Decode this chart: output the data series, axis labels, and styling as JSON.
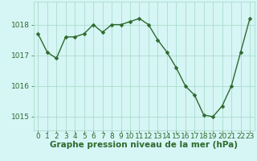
{
  "x": [
    0,
    1,
    2,
    3,
    4,
    5,
    6,
    7,
    8,
    9,
    10,
    11,
    12,
    13,
    14,
    15,
    16,
    17,
    18,
    19,
    20,
    21,
    22,
    23
  ],
  "y": [
    1017.7,
    1017.1,
    1016.9,
    1017.6,
    1017.6,
    1017.7,
    1018.0,
    1017.75,
    1018.0,
    1018.0,
    1018.1,
    1018.2,
    1018.0,
    1017.5,
    1017.1,
    1016.6,
    1016.0,
    1015.7,
    1015.05,
    1015.0,
    1015.35,
    1016.0,
    1017.1,
    1018.2
  ],
  "line_color": "#2d6a2d",
  "marker": "D",
  "marker_size": 2.5,
  "line_width": 1.0,
  "bg_color": "#d6f5f5",
  "grid_color": "#aaddcc",
  "xlabel": "Graphe pression niveau de la mer (hPa)",
  "xlabel_fontsize": 7.5,
  "xlabel_color": "#2d6a2d",
  "ylabel_ticks": [
    1015,
    1016,
    1017,
    1018
  ],
  "ylim": [
    1014.55,
    1018.75
  ],
  "xlim": [
    -0.5,
    23.5
  ],
  "tick_fontsize": 6.5,
  "tick_color": "#2d6a2d"
}
